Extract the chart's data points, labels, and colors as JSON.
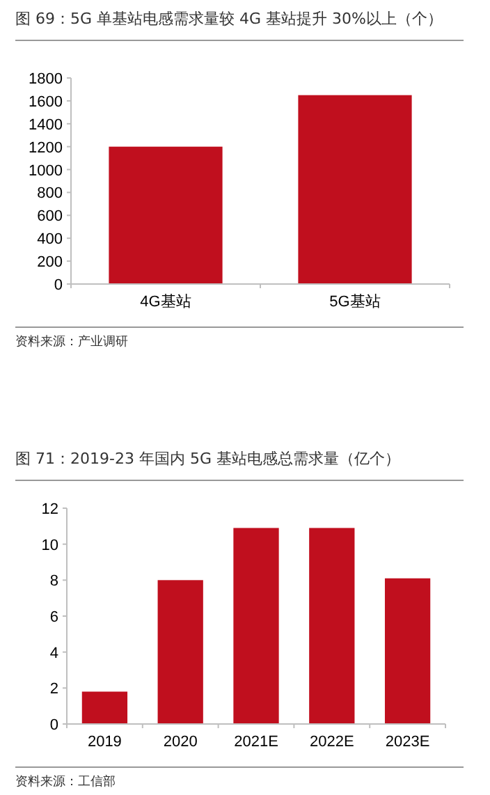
{
  "chart_data": [
    {
      "type": "bar",
      "title": "图 69：5G 单基站电感需求量较 4G 基站提升 30%以上（个）",
      "categories": [
        "4G基站",
        "5G基站"
      ],
      "values": [
        1200,
        1650
      ],
      "color": "#c00f1e",
      "ylim": [
        0,
        1800
      ],
      "yticks": [
        0,
        200,
        400,
        600,
        800,
        1000,
        1200,
        1400,
        1600,
        1800
      ],
      "grid": false,
      "annotations": [
        "资料来源：产业调研"
      ]
    },
    {
      "type": "bar",
      "title": "图 71：2019-23 年国内 5G 基站电感总需求量（亿个）",
      "categories": [
        "2019",
        "2020",
        "2021E",
        "2022E",
        "2023E"
      ],
      "values": [
        1.8,
        8.0,
        10.9,
        10.9,
        8.1
      ],
      "color": "#c00f1e",
      "ylim": [
        0,
        12
      ],
      "yticks": [
        0,
        2,
        4,
        6,
        8,
        10,
        12
      ],
      "grid": false,
      "annotations": [
        "资料来源：工信部"
      ]
    }
  ]
}
